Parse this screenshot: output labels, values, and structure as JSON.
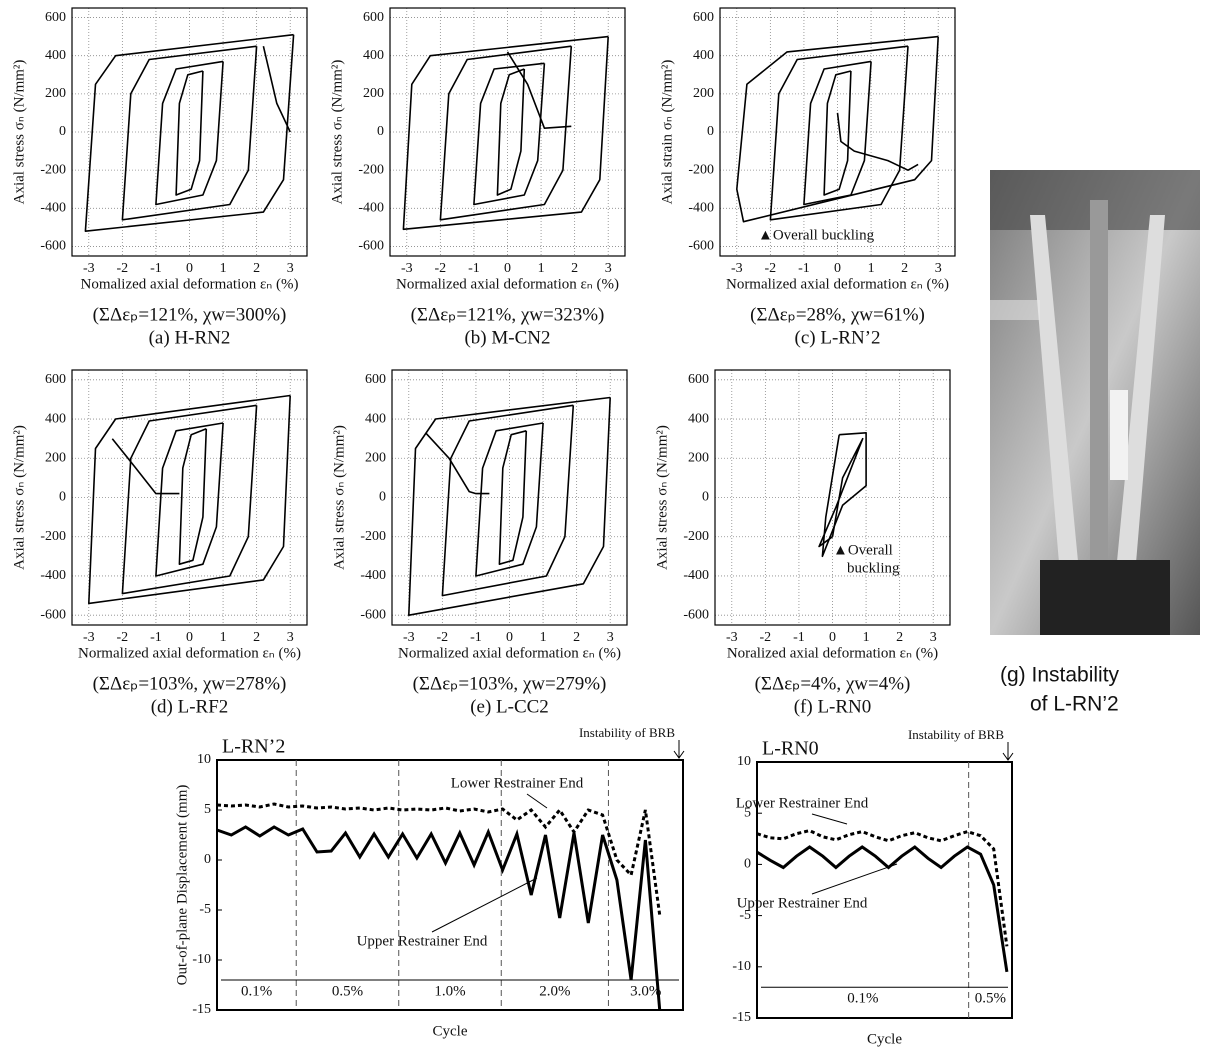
{
  "chart_data": [
    {
      "type": "line",
      "y_label": "Axial stress  σₙ (N/mm²)",
      "x_label": "Nomalized axial deformation  εₙ (%)",
      "note": "(ΣΔεₚ=121%, χw=300%)",
      "caption": "(a) H-RN2",
      "xlim": [
        -3.5,
        3.5
      ],
      "ylim": [
        -650,
        650
      ],
      "xticks": [
        -3,
        -2,
        -1,
        0,
        1,
        2,
        3
      ],
      "yticks": [
        -600,
        -400,
        -200,
        0,
        200,
        400,
        600
      ],
      "grid": true,
      "series": [
        {
          "color": "#000",
          "x": [
            0.4,
            0.3,
            0.05,
            -0.4,
            -0.3,
            -0.05,
            0.4
          ],
          "values": [
            320,
            -150,
            -300,
            -330,
            150,
            300,
            320
          ]
        },
        {
          "color": "#000",
          "x": [
            1,
            0.8,
            0.4,
            -1,
            -0.8,
            -0.4,
            1
          ],
          "values": [
            370,
            -150,
            -330,
            -380,
            150,
            330,
            370
          ]
        },
        {
          "color": "#000",
          "x": [
            2,
            1.75,
            1.2,
            -2,
            -1.75,
            -1.2,
            2
          ],
          "values": [
            450,
            -200,
            -380,
            -460,
            200,
            380,
            450
          ]
        },
        {
          "color": "#000",
          "x": [
            3.1,
            2.8,
            2.2,
            -3.1,
            -2.8,
            -2.2,
            3.1
          ],
          "values": [
            510,
            -250,
            -420,
            -520,
            250,
            400,
            510
          ]
        },
        {
          "color": "#000",
          "x": [
            2.2,
            2.6,
            3.0
          ],
          "values": [
            450,
            150,
            0
          ]
        }
      ]
    },
    {
      "type": "line",
      "y_label": "Axial stress  σₙ (N/mm²)",
      "x_label": "Normalized axial deformation  εₙ (%)",
      "note": "(ΣΔεₚ=121%, χw=323%)",
      "caption": "(b) M-CN2",
      "xlim": [
        -3.5,
        3.5
      ],
      "ylim": [
        -650,
        650
      ],
      "xticks": [
        -3,
        -2,
        -1,
        0,
        1,
        2,
        3
      ],
      "yticks": [
        -600,
        -400,
        -200,
        0,
        200,
        400,
        600
      ],
      "grid": true,
      "series": [
        {
          "color": "#000",
          "x": [
            0.5,
            0.4,
            0.1,
            -0.3,
            -0.2,
            0.05,
            0.5
          ],
          "values": [
            330,
            -100,
            -300,
            -330,
            150,
            300,
            330
          ]
        },
        {
          "color": "#000",
          "x": [
            1.1,
            0.9,
            0.5,
            -1,
            -0.8,
            -0.4,
            1.1
          ],
          "values": [
            360,
            -150,
            -330,
            -380,
            150,
            330,
            360
          ]
        },
        {
          "color": "#000",
          "x": [
            1.9,
            1.65,
            1.1,
            -2,
            -1.75,
            -1.2,
            1.9
          ],
          "values": [
            450,
            -200,
            -380,
            -460,
            200,
            380,
            450
          ]
        },
        {
          "color": "#000",
          "x": [
            3,
            2.75,
            2.2,
            -3.1,
            -2.85,
            -2.3,
            3
          ],
          "values": [
            500,
            -250,
            -420,
            -510,
            250,
            400,
            500
          ]
        },
        {
          "color": "#000",
          "x": [
            0,
            0.6,
            1.1,
            1.9
          ],
          "values": [
            420,
            250,
            20,
            30
          ]
        }
      ]
    },
    {
      "type": "line",
      "y_label": "Axial strain  σₙ (N/mm²)",
      "x_label": "Normalized axial deformation  εₙ (%)",
      "note": "(ΣΔεₚ=28%, χw=61%)",
      "caption": "(c) L-RN’2",
      "annotation": [
        "▲Overall buckling"
      ],
      "xlim": [
        -3.5,
        3.5
      ],
      "ylim": [
        -650,
        650
      ],
      "xticks": [
        -3,
        -2,
        -1,
        0,
        1,
        2,
        3
      ],
      "yticks": [
        -600,
        -400,
        -200,
        0,
        200,
        400,
        600
      ],
      "grid": true,
      "series": [
        {
          "color": "#000",
          "x": [
            0.4,
            0.3,
            0.05,
            -0.4,
            -0.3,
            -0.05,
            0.4
          ],
          "values": [
            320,
            -150,
            -300,
            -330,
            150,
            300,
            320
          ]
        },
        {
          "color": "#000",
          "x": [
            1,
            0.8,
            0.4,
            -1,
            -0.8,
            -0.4,
            1
          ],
          "values": [
            370,
            -150,
            -330,
            -380,
            150,
            330,
            370
          ]
        },
        {
          "color": "#000",
          "x": [
            2.1,
            1.85,
            1.3,
            -2,
            -1.75,
            -1.2,
            2.1
          ],
          "values": [
            450,
            -200,
            -380,
            -460,
            200,
            380,
            450
          ]
        },
        {
          "color": "#000",
          "x": [
            3,
            2.8,
            2.3,
            -2.8,
            -3,
            -2.7,
            -1.5,
            3
          ],
          "values": [
            500,
            -150,
            -250,
            -470,
            -300,
            250,
            420,
            500
          ]
        },
        {
          "color": "#000",
          "x": [
            0,
            0.1,
            0.5,
            1.5,
            2.1,
            2.4
          ],
          "values": [
            100,
            -50,
            -100,
            -150,
            -200,
            -170
          ]
        }
      ]
    },
    {
      "type": "line",
      "y_label": "Axial stress  σₙ (N/mm²)",
      "x_label": "Normalized axial deformation  εₙ (%)",
      "note": "(ΣΔεₚ=103%, χw=278%)",
      "caption": "(d) L-RF2",
      "xlim": [
        -3.5,
        3.5
      ],
      "ylim": [
        -650,
        650
      ],
      "xticks": [
        -3,
        -2,
        -1,
        0,
        1,
        2,
        3
      ],
      "yticks": [
        -600,
        -400,
        -200,
        0,
        200,
        400,
        600
      ],
      "grid": true,
      "series": [
        {
          "color": "#000",
          "x": [
            0.5,
            0.4,
            0.1,
            -0.3,
            -0.2,
            0.05,
            0.5
          ],
          "values": [
            350,
            -100,
            -320,
            -340,
            150,
            320,
            350
          ]
        },
        {
          "color": "#000",
          "x": [
            1,
            0.8,
            0.4,
            -1,
            -0.8,
            -0.4,
            1
          ],
          "values": [
            380,
            -150,
            -340,
            -400,
            150,
            340,
            380
          ]
        },
        {
          "color": "#000",
          "x": [
            2,
            1.75,
            1.2,
            -2,
            -1.75,
            -1.2,
            2
          ],
          "values": [
            470,
            -200,
            -400,
            -490,
            200,
            390,
            470
          ]
        },
        {
          "color": "#000",
          "x": [
            3,
            2.8,
            2.2,
            -3,
            -2.8,
            -2.2,
            3
          ],
          "values": [
            520,
            -250,
            -420,
            -540,
            250,
            400,
            520
          ]
        },
        {
          "color": "#000",
          "x": [
            -2.3,
            -1.6,
            -1,
            -0.8,
            -0.3
          ],
          "values": [
            300,
            150,
            20,
            20,
            20
          ]
        }
      ]
    },
    {
      "type": "line",
      "y_label": "Axial stress  σₙ (N/mm²)",
      "x_label": "Normalized axial deformation  εₙ (%)",
      "note": "(ΣΔεₚ=103%, χw=279%)",
      "caption": "(e) L-CC2",
      "xlim": [
        -3.5,
        3.5
      ],
      "ylim": [
        -650,
        650
      ],
      "xticks": [
        -3,
        -2,
        -1,
        0,
        1,
        2,
        3
      ],
      "yticks": [
        -600,
        -400,
        -200,
        0,
        200,
        400,
        600
      ],
      "grid": true,
      "series": [
        {
          "color": "#000",
          "x": [
            0.5,
            0.4,
            0.1,
            -0.3,
            -0.2,
            0.05,
            0.5
          ],
          "values": [
            340,
            -100,
            -320,
            -340,
            150,
            320,
            340
          ]
        },
        {
          "color": "#000",
          "x": [
            1,
            0.8,
            0.4,
            -1,
            -0.8,
            -0.4,
            1
          ],
          "values": [
            380,
            -150,
            -340,
            -400,
            150,
            340,
            380
          ]
        },
        {
          "color": "#000",
          "x": [
            1.9,
            1.65,
            1.1,
            -2,
            -1.75,
            -1.2,
            1.9
          ],
          "values": [
            470,
            -200,
            -400,
            -500,
            200,
            390,
            470
          ]
        },
        {
          "color": "#000",
          "x": [
            3,
            2.8,
            2.2,
            -3,
            -2.8,
            -2.2,
            3
          ],
          "values": [
            510,
            -250,
            -440,
            -600,
            250,
            400,
            510
          ]
        },
        {
          "color": "#000",
          "x": [
            -2.5,
            -1.8,
            -1.2,
            -1,
            -0.6
          ],
          "values": [
            330,
            200,
            30,
            20,
            20
          ]
        }
      ]
    },
    {
      "type": "line",
      "y_label": "Axial stress  σₙ (N/mm²)",
      "x_label": "Noralized axial deformation  εₙ (%)",
      "note": "(ΣΔεₚ=4%, χw=4%)",
      "caption": "(f) L-RN0",
      "annotation": [
        "▲Overall",
        "buckling"
      ],
      "xlim": [
        -3.5,
        3.5
      ],
      "ylim": [
        -650,
        650
      ],
      "xticks": [
        -3,
        -2,
        -1,
        0,
        1,
        2,
        3
      ],
      "yticks": [
        -600,
        -400,
        -200,
        0,
        200,
        400,
        600
      ],
      "grid": true,
      "series": [
        {
          "color": "#000",
          "x": [
            0.2,
            1,
            1,
            0.3,
            -0.3,
            -0.2,
            0.2
          ],
          "values": [
            320,
            330,
            60,
            -40,
            -300,
            -100,
            320
          ]
        },
        {
          "color": "#000",
          "x": [
            0,
            0.3,
            0.9,
            0.1,
            -0.4,
            0
          ],
          "values": [
            -200,
            100,
            300,
            -50,
            -250,
            -200
          ]
        }
      ]
    },
    {
      "type": "line",
      "title": "L-RN’2",
      "y_label": "Out-of-plane Displacement (mm)",
      "x_label": "Cycle",
      "annotation": "Instability of BRB",
      "phases": [
        "0.1%",
        "0.5%",
        "1.0%",
        "2.0%",
        "3.0%"
      ],
      "ylim": [
        -15,
        10
      ],
      "yticks": [
        -15,
        -10,
        -5,
        0,
        5,
        10
      ],
      "grid": false,
      "categories": [
        null,
        null,
        null,
        null,
        null,
        null,
        null,
        null,
        null,
        null,
        null,
        null,
        null,
        null,
        null,
        null,
        null,
        null,
        null,
        null,
        null,
        null,
        null,
        null,
        null,
        null,
        null,
        null,
        null,
        null,
        null,
        null
      ],
      "series": [
        {
          "name": "Lower Restrainer End",
          "color": "#000",
          "line_style": "dashed",
          "values": [
            5.5,
            5.4,
            5.5,
            5.3,
            5.6,
            5.3,
            5.4,
            5.2,
            5.3,
            5.1,
            5.2,
            5,
            5.2,
            5,
            5.1,
            5,
            5.2,
            4.9,
            5.1,
            4.8,
            5.1,
            4,
            5,
            3.3,
            5,
            2.8,
            5,
            4.5,
            0,
            -1.5,
            5,
            -5.5
          ]
        },
        {
          "name": "Upper Restrainer End",
          "color": "#000",
          "line_style": "solid",
          "values": [
            3,
            2.5,
            3.3,
            2.4,
            3.3,
            2.5,
            3.1,
            0.8,
            0.9,
            2.7,
            0.3,
            2.6,
            0.3,
            2.6,
            0.2,
            2.6,
            -0.3,
            2.7,
            -0.5,
            2.8,
            -1,
            2.6,
            -3.5,
            2.5,
            -5.8,
            2.7,
            -6.3,
            2.5,
            -2,
            -12,
            2,
            -15
          ]
        }
      ]
    },
    {
      "type": "line",
      "title": "L-RN0",
      "x_label": "Cycle",
      "annotation": "Instability of BRB",
      "phases": [
        "0.1%",
        "0.5%"
      ],
      "ylim": [
        -15,
        10
      ],
      "yticks": [
        -15,
        -10,
        -5,
        0,
        5,
        10
      ],
      "grid": false,
      "categories": [
        null,
        null,
        null,
        null,
        null,
        null,
        null,
        null,
        null,
        null,
        null,
        null,
        null,
        null,
        null,
        null,
        null,
        null,
        null,
        null
      ],
      "series": [
        {
          "name": "Lower Restrainer End",
          "color": "#000",
          "line_style": "dashed",
          "values": [
            3,
            2.6,
            2.5,
            3,
            3.3,
            2.7,
            2.4,
            2.9,
            3.2,
            2.7,
            2.3,
            2.8,
            3.1,
            2.6,
            2.3,
            2.8,
            3.2,
            2.8,
            1.5,
            -8
          ]
        },
        {
          "name": "Upper Restrainer End",
          "color": "#000",
          "line_style": "solid",
          "values": [
            1.2,
            0.4,
            -0.3,
            0.8,
            1.7,
            0.8,
            -0.3,
            0.8,
            1.7,
            0.8,
            -0.3,
            0.8,
            1.7,
            0.6,
            -0.3,
            0.8,
            1.7,
            1,
            -2,
            -10.5
          ]
        }
      ]
    }
  ],
  "photo": {
    "caption_lines": [
      "(g) Instability",
      "of L-RN’2"
    ]
  }
}
